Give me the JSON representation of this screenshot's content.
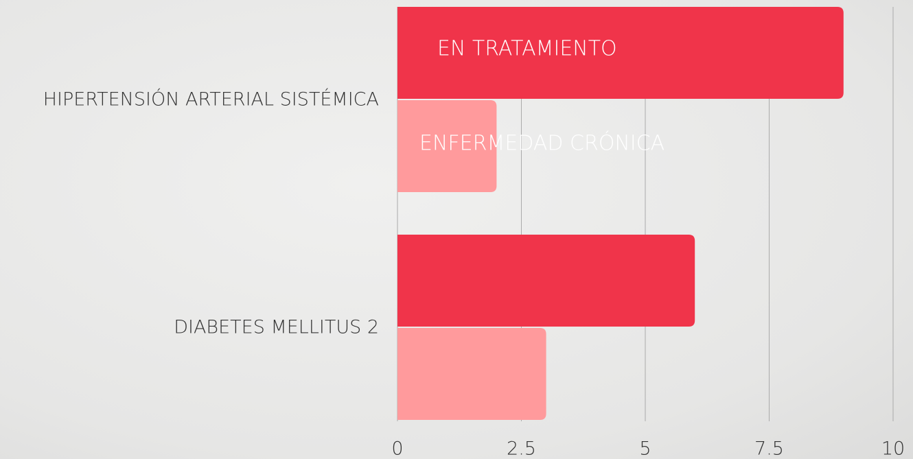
{
  "chart_data": {
    "type": "bar",
    "orientation": "horizontal",
    "categories": [
      "HIPERTENSIÓN ARTERIAL SISTÉMICA",
      "DIABETES MELLITUS 2"
    ],
    "series": [
      {
        "name": "EN TRATAMIENTO",
        "color": "#f0344a",
        "values": [
          9,
          6
        ]
      },
      {
        "name": "ENFERMEDAD CRÓNICA",
        "color": "#ff9a9c",
        "values": [
          2,
          3
        ]
      }
    ],
    "xlim": [
      0,
      10
    ],
    "xticks": [
      0,
      2.5,
      5,
      7.5,
      10
    ],
    "grid": true
  }
}
